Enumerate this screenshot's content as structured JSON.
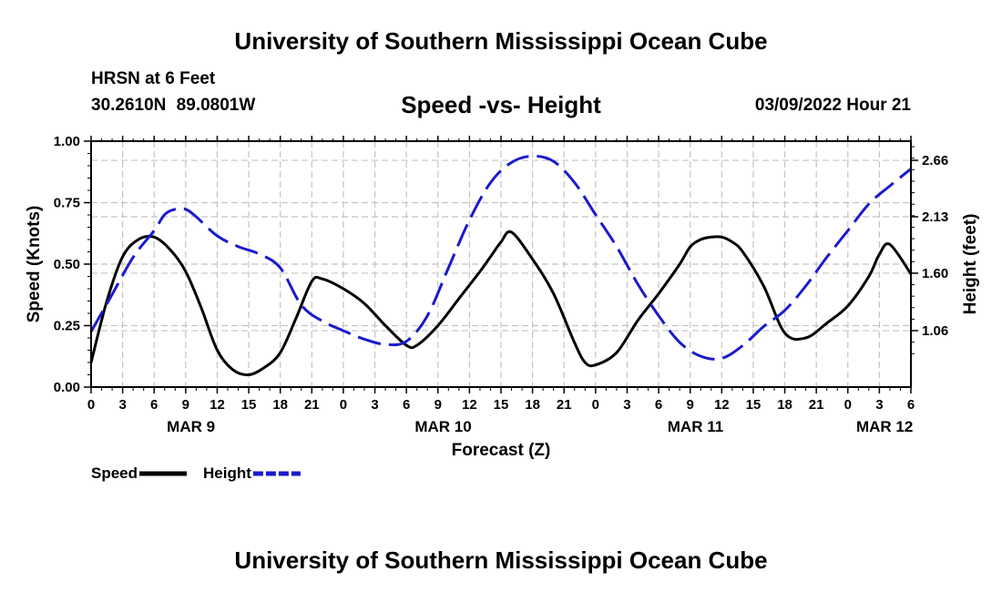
{
  "header": {
    "title": "University of Southern Mississippi Ocean Cube",
    "station": "HRSN at 6 Feet",
    "coordinates": "30.2610N 89.0801W",
    "chart_title": "Speed -vs- Height",
    "timestamp": "03/09/2022 Hour 21"
  },
  "footer": {
    "title": "University of Southern Mississippi Ocean Cube"
  },
  "chart_data": {
    "type": "line",
    "title": "Speed -vs- Height",
    "xlabel": "Forecast (Z)",
    "ylabel": "Speed (Knots)",
    "ylabel_right": "Height (feet)",
    "x_range_hours": [
      0,
      78
    ],
    "x_tick_step_hours": 3,
    "x_tick_labels": [
      "0",
      "3",
      "6",
      "9",
      "12",
      "15",
      "18",
      "21",
      "0",
      "3",
      "6",
      "9",
      "12",
      "15",
      "18",
      "21",
      "0",
      "3",
      "6",
      "9",
      "12",
      "15",
      "18",
      "21",
      "0",
      "3",
      "6"
    ],
    "date_labels": [
      {
        "label": "MAR 9",
        "hour": 9.5
      },
      {
        "label": "MAR 10",
        "hour": 33.5
      },
      {
        "label": "MAR 11",
        "hour": 57.5
      },
      {
        "label": "MAR 12",
        "hour": 75.5
      }
    ],
    "y_left": {
      "range": [
        0,
        1.0
      ],
      "ticks": [
        0.0,
        0.25,
        0.5,
        0.75,
        1.0
      ],
      "tick_labels": [
        "0.00",
        "0.25",
        "0.50",
        "0.75",
        "1.00"
      ]
    },
    "y_right": {
      "range": [
        0.53,
        2.84
      ],
      "ticks": [
        1.06,
        1.6,
        2.13,
        2.66
      ],
      "tick_labels": [
        "1.06",
        "1.60",
        "2.13",
        "2.66"
      ]
    },
    "grid": true,
    "series": [
      {
        "name": "Speed",
        "axis": "left",
        "color": "#000000",
        "style": "solid",
        "x": [
          0,
          1.5,
          3,
          4.5,
          6,
          7.5,
          9,
          10.5,
          12,
          13.5,
          15,
          16.5,
          18,
          19.5,
          21,
          22,
          24,
          26,
          28,
          30,
          31,
          33,
          35,
          37,
          38,
          39,
          40,
          42,
          44,
          46,
          47,
          48,
          50,
          52,
          54,
          56,
          57,
          58,
          59,
          60,
          61,
          62,
          64,
          66,
          68,
          70,
          72,
          74,
          75,
          76,
          78
        ],
        "y": [
          0.1,
          0.35,
          0.53,
          0.6,
          0.61,
          0.56,
          0.47,
          0.32,
          0.15,
          0.07,
          0.05,
          0.08,
          0.14,
          0.28,
          0.43,
          0.44,
          0.4,
          0.34,
          0.25,
          0.17,
          0.17,
          0.25,
          0.36,
          0.47,
          0.53,
          0.59,
          0.63,
          0.52,
          0.38,
          0.18,
          0.1,
          0.09,
          0.14,
          0.27,
          0.38,
          0.5,
          0.57,
          0.6,
          0.61,
          0.61,
          0.59,
          0.55,
          0.41,
          0.22,
          0.2,
          0.26,
          0.33,
          0.45,
          0.54,
          0.58,
          0.46
        ]
      },
      {
        "name": "Height",
        "axis": "right",
        "color": "#1a1acc",
        "style": "dashed",
        "x": [
          0,
          2,
          4,
          6,
          7,
          8,
          9,
          10,
          12,
          14,
          16,
          18,
          20,
          22,
          24,
          26,
          28,
          30,
          32,
          34,
          36,
          38,
          40,
          42,
          44,
          46,
          48,
          50,
          52,
          54,
          56,
          58,
          60,
          62,
          64,
          66,
          68,
          70,
          72,
          74,
          76,
          78
        ],
        "y": [
          1.05,
          1.4,
          1.75,
          2.0,
          2.15,
          2.2,
          2.2,
          2.13,
          1.95,
          1.85,
          1.78,
          1.65,
          1.3,
          1.15,
          1.06,
          0.98,
          0.93,
          0.96,
          1.2,
          1.65,
          2.1,
          2.45,
          2.64,
          2.7,
          2.65,
          2.45,
          2.15,
          1.85,
          1.5,
          1.2,
          0.95,
          0.82,
          0.8,
          0.92,
          1.1,
          1.25,
          1.48,
          1.75,
          2.0,
          2.25,
          2.42,
          2.58
        ]
      }
    ],
    "legend": {
      "position": "bottom-left",
      "entries": [
        "Speed",
        "Height"
      ]
    }
  }
}
